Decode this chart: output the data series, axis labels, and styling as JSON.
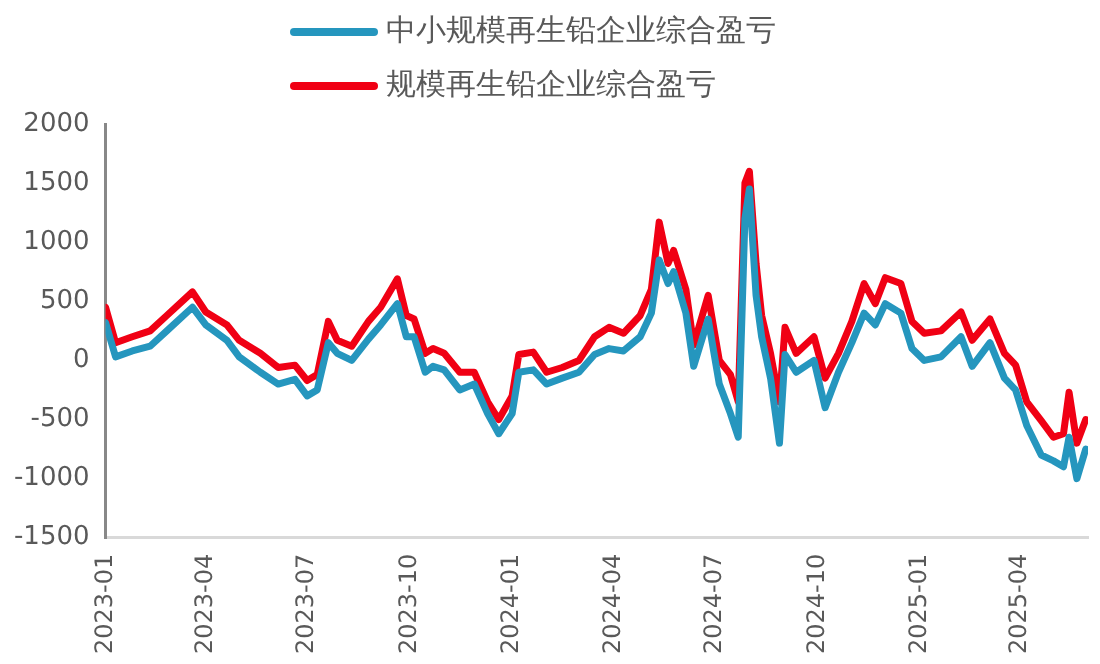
{
  "chart_data": {
    "type": "line",
    "legend": "top",
    "marker": "none",
    "line_style": "solid",
    "grid": false,
    "x": [
      "2023-01-01",
      "2023-01-10",
      "2023-01-25",
      "2023-02-10",
      "2023-02-25",
      "2023-03-20",
      "2023-04-01",
      "2023-04-20",
      "2023-05-01",
      "2023-05-20",
      "2023-06-05",
      "2023-06-20",
      "2023-07-01",
      "2023-07-10",
      "2023-07-20",
      "2023-07-28",
      "2023-08-10",
      "2023-08-25",
      "2023-09-05",
      "2023-09-20",
      "2023-09-28",
      "2023-10-05",
      "2023-10-15",
      "2023-10-22",
      "2023-11-01",
      "2023-11-15",
      "2023-11-28",
      "2023-12-10",
      "2023-12-20",
      "2024-01-01",
      "2024-01-07",
      "2024-01-20",
      "2024-02-01",
      "2024-02-15",
      "2024-03-01",
      "2024-03-15",
      "2024-03-28",
      "2024-04-10",
      "2024-04-25",
      "2024-05-05",
      "2024-05-12",
      "2024-05-20",
      "2024-05-25",
      "2024-06-05",
      "2024-06-12",
      "2024-06-25",
      "2024-07-05",
      "2024-07-15",
      "2024-07-22",
      "2024-07-28",
      "2024-08-01",
      "2024-08-07",
      "2024-08-12",
      "2024-08-20",
      "2024-08-28",
      "2024-09-02",
      "2024-09-12",
      "2024-09-28",
      "2024-10-08",
      "2024-10-20",
      "2024-11-01",
      "2024-11-12",
      "2024-11-22",
      "2024-12-01",
      "2024-12-15",
      "2024-12-25",
      "2025-01-05",
      "2025-01-20",
      "2025-02-07",
      "2025-02-17",
      "2025-03-05",
      "2025-03-18",
      "2025-03-28",
      "2025-04-07",
      "2025-04-20",
      "2025-05-01",
      "2025-05-10",
      "2025-05-15",
      "2025-05-22",
      "2025-05-30"
    ],
    "series": [
      {
        "name": "中小规模再生铅企业综合盈亏",
        "color": "#2596be",
        "values": [
          320,
          30,
          80,
          120,
          250,
          450,
          300,
          170,
          30,
          -100,
          -200,
          -160,
          -300,
          -250,
          150,
          60,
          0,
          180,
          300,
          480,
          200,
          200,
          -100,
          -50,
          -80,
          -250,
          -200,
          -450,
          -620,
          -450,
          -100,
          -80,
          -200,
          -150,
          -100,
          50,
          100,
          80,
          200,
          400,
          850,
          650,
          750,
          400,
          -50,
          350,
          -200,
          -450,
          -650,
          1200,
          1450,
          550,
          200,
          -150,
          -700,
          50,
          -100,
          0,
          -400,
          -100,
          150,
          400,
          300,
          480,
          400,
          100,
          0,
          30,
          200,
          -50,
          150,
          -150,
          -250,
          -550,
          -800,
          -850,
          -900,
          -650,
          -1000,
          -750
        ]
      },
      {
        "name": "规模再生铅企业综合盈亏",
        "color": "#f00014",
        "values": [
          450,
          150,
          200,
          250,
          380,
          580,
          410,
          300,
          170,
          60,
          -60,
          -40,
          -170,
          -120,
          330,
          170,
          120,
          330,
          450,
          690,
          380,
          350,
          60,
          100,
          60,
          -100,
          -100,
          -350,
          -500,
          -300,
          50,
          70,
          -100,
          -60,
          0,
          200,
          280,
          230,
          380,
          600,
          1170,
          820,
          930,
          600,
          130,
          550,
          0,
          -120,
          -350,
          1500,
          1600,
          820,
          380,
          60,
          -350,
          280,
          60,
          200,
          -150,
          60,
          330,
          650,
          480,
          700,
          650,
          330,
          230,
          250,
          410,
          170,
          350,
          60,
          -40,
          -350,
          -510,
          -650,
          -620,
          -270,
          -700,
          -500
        ]
      }
    ],
    "xlim": [
      "2023-01-01",
      "2025-06-01"
    ],
    "xticks": [
      "2023-01",
      "2023-04",
      "2023-07",
      "2023-10",
      "2024-01",
      "2024-04",
      "2024-07",
      "2024-10",
      "2025-01",
      "2025-04"
    ],
    "ylim": [
      -1500,
      2000
    ],
    "yticks": [
      -1500,
      -1000,
      -500,
      0,
      500,
      1000,
      1500,
      2000
    ]
  }
}
